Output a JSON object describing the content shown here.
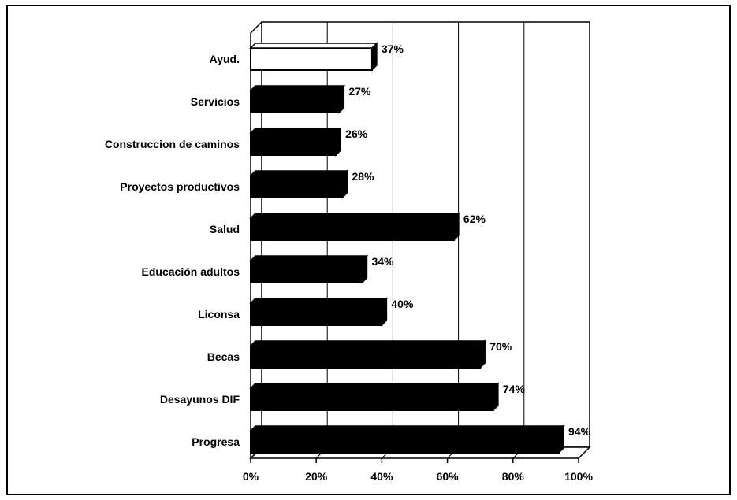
{
  "chart_data": {
    "type": "bar",
    "orientation": "horizontal",
    "categories": [
      "Ayud.",
      "Servicios",
      "Construccion de caminos",
      "Proyectos productivos",
      "Salud",
      "Educación adultos",
      "Liconsa",
      "Becas",
      "Desayunos DIF",
      "Progresa"
    ],
    "values": [
      37,
      27,
      26,
      28,
      62,
      34,
      40,
      70,
      74,
      94
    ],
    "value_labels": [
      "37%",
      "27%",
      "26%",
      "28%",
      "62%",
      "34%",
      "40%",
      "70%",
      "74%",
      "94%"
    ],
    "xticks": [
      "0%",
      "20%",
      "40%",
      "60%",
      "80%",
      "100%"
    ],
    "xlim": [
      0,
      100
    ],
    "grid": true,
    "legend": "none",
    "colors": {
      "bar": "#000000",
      "highlight_bar": "#ffffff",
      "grid": "#000000",
      "background": "#ffffff"
    },
    "highlight_index": 0
  }
}
